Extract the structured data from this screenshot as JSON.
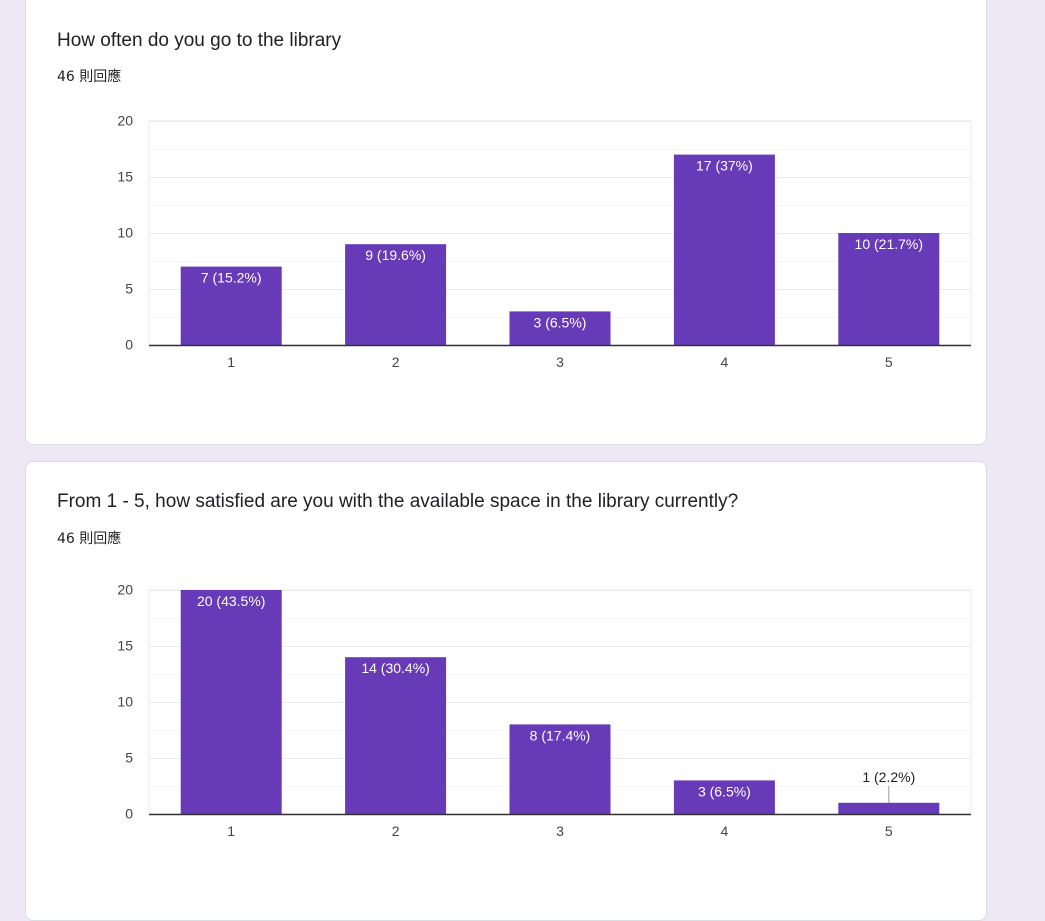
{
  "colors": {
    "bar": "#673ab7",
    "grid": "#ebebeb",
    "axis": "#333333",
    "label_in": "#ffffff",
    "label_out": "#222222",
    "background": "#ede7f6"
  },
  "questions": [
    {
      "title": "How often do you go to the library",
      "responses": "46 則回應"
    },
    {
      "title": "From 1 - 5, how satisfied are you with the available space in the library currently?",
      "responses": "46 則回應"
    }
  ],
  "chart_data": [
    {
      "type": "bar",
      "categories": [
        "1",
        "2",
        "3",
        "4",
        "5"
      ],
      "values": [
        7,
        9,
        3,
        17,
        10
      ],
      "labels": [
        "7 (15.2%)",
        "9 (19.6%)",
        "3 (6.5%)",
        "17 (37%)",
        "10 (21.7%)"
      ],
      "ylim": [
        0,
        20
      ],
      "yticks": [
        0,
        5,
        10,
        15,
        20
      ],
      "grid": true
    },
    {
      "type": "bar",
      "categories": [
        "1",
        "2",
        "3",
        "4",
        "5"
      ],
      "values": [
        20,
        14,
        8,
        3,
        1
      ],
      "labels": [
        "20 (43.5%)",
        "14 (30.4%)",
        "8 (17.4%)",
        "3 (6.5%)",
        "1 (2.2%)"
      ],
      "ylim": [
        0,
        20
      ],
      "yticks": [
        0,
        5,
        10,
        15,
        20
      ],
      "grid": true
    }
  ]
}
